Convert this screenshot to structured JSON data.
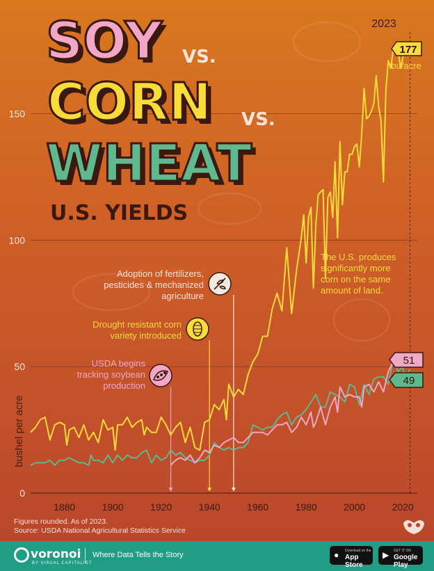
{
  "title": {
    "line1": "SOY",
    "vs1": "VS.",
    "line2": "CORN",
    "vs2": "VS.",
    "line3": "WHEAT",
    "subtitle": "U.S. YIELDS"
  },
  "year_marker": "2023",
  "unit_label": "bu/acre",
  "ylabel": "bushel per acre",
  "annotations": {
    "fertilizers": [
      "Adoption of fertilizers,",
      "pesticides & mechanized",
      "agriculture"
    ],
    "drought": [
      "Drought resistant corn",
      "variety introduced"
    ],
    "usda": [
      "USDA begins",
      "tracking soybean",
      "production"
    ],
    "corn_note": [
      "The U.S. produces",
      "significantly more",
      "corn on the same",
      "amount of land."
    ]
  },
  "end_labels": {
    "corn": "177",
    "soy": "51",
    "wheat": "49"
  },
  "notes": [
    "Figures rounded. As of 2023.",
    "Source: USDA National Agricultural Statistics Service"
  ],
  "footer": {
    "brand": "voronoi",
    "brand_sub": "BY VISUAL CAPITALIST",
    "tagline": "Where Data Tells the Story",
    "appstore_small": "Download on the",
    "appstore": "App Store",
    "googleplay_small": "GET IT ON",
    "googleplay": "Google Play"
  },
  "colors": {
    "corn": "#f9dc3a",
    "soy": "#f2a7c7",
    "wheat": "#5fb88e",
    "background": "#c4512a",
    "footer": "#219d86"
  },
  "chart_data": {
    "type": "line",
    "xlim": [
      1866,
      2026
    ],
    "ylim": [
      0,
      190
    ],
    "xticks": [
      1880,
      1900,
      1920,
      1940,
      1960,
      1980,
      2000,
      2020
    ],
    "yticks": [
      0,
      50,
      100,
      150
    ],
    "events": [
      {
        "year": 1924,
        "label": "USDA begins tracking soybean production"
      },
      {
        "year": 1940,
        "label": "Drought resistant corn variety introduced"
      },
      {
        "year": 1950,
        "label": "Adoption of fertilizers, pesticides & mechanized agriculture"
      }
    ],
    "series": [
      {
        "name": "Corn",
        "color": "#f9dc3a",
        "points": [
          [
            1866,
            24
          ],
          [
            1868,
            26
          ],
          [
            1870,
            29
          ],
          [
            1872,
            30
          ],
          [
            1874,
            21
          ],
          [
            1876,
            27
          ],
          [
            1878,
            28
          ],
          [
            1880,
            27
          ],
          [
            1881,
            19
          ],
          [
            1882,
            25
          ],
          [
            1884,
            26
          ],
          [
            1886,
            22
          ],
          [
            1888,
            27
          ],
          [
            1890,
            21
          ],
          [
            1892,
            24
          ],
          [
            1894,
            20
          ],
          [
            1896,
            29
          ],
          [
            1898,
            25
          ],
          [
            1900,
            26
          ],
          [
            1901,
            17
          ],
          [
            1902,
            27
          ],
          [
            1904,
            27
          ],
          [
            1906,
            30
          ],
          [
            1908,
            26
          ],
          [
            1910,
            28
          ],
          [
            1912,
            29
          ],
          [
            1913,
            23
          ],
          [
            1914,
            26
          ],
          [
            1916,
            24
          ],
          [
            1918,
            24
          ],
          [
            1920,
            30
          ],
          [
            1922,
            27
          ],
          [
            1924,
            23
          ],
          [
            1926,
            26
          ],
          [
            1928,
            28
          ],
          [
            1930,
            20
          ],
          [
            1932,
            26
          ],
          [
            1934,
            18
          ],
          [
            1936,
            17
          ],
          [
            1938,
            28
          ],
          [
            1940,
            29
          ],
          [
            1942,
            35
          ],
          [
            1944,
            33
          ],
          [
            1946,
            37
          ],
          [
            1947,
            29
          ],
          [
            1948,
            43
          ],
          [
            1950,
            38
          ],
          [
            1952,
            41
          ],
          [
            1954,
            39
          ],
          [
            1956,
            47
          ],
          [
            1958,
            52
          ],
          [
            1960,
            55
          ],
          [
            1962,
            62
          ],
          [
            1964,
            62
          ],
          [
            1966,
            73
          ],
          [
            1968,
            79
          ],
          [
            1970,
            72
          ],
          [
            1972,
            97
          ],
          [
            1974,
            71
          ],
          [
            1976,
            88
          ],
          [
            1978,
            101
          ],
          [
            1979,
            110
          ],
          [
            1980,
            91
          ],
          [
            1981,
            109
          ],
          [
            1982,
            113
          ],
          [
            1983,
            81
          ],
          [
            1984,
            106
          ],
          [
            1985,
            118
          ],
          [
            1986,
            119
          ],
          [
            1987,
            120
          ],
          [
            1988,
            85
          ],
          [
            1989,
            117
          ],
          [
            1990,
            119
          ],
          [
            1991,
            109
          ],
          [
            1992,
            131
          ],
          [
            1993,
            101
          ],
          [
            1994,
            139
          ],
          [
            1995,
            114
          ],
          [
            1996,
            127
          ],
          [
            1997,
            127
          ],
          [
            1998,
            134
          ],
          [
            1999,
            134
          ],
          [
            2000,
            137
          ],
          [
            2001,
            138
          ],
          [
            2002,
            129
          ],
          [
            2003,
            142
          ],
          [
            2004,
            160
          ],
          [
            2005,
            148
          ],
          [
            2006,
            149
          ],
          [
            2007,
            151
          ],
          [
            2008,
            154
          ],
          [
            2009,
            165
          ],
          [
            2010,
            153
          ],
          [
            2011,
            147
          ],
          [
            2012,
            123
          ],
          [
            2013,
            159
          ],
          [
            2014,
            171
          ],
          [
            2015,
            168
          ],
          [
            2016,
            175
          ],
          [
            2017,
            177
          ],
          [
            2018,
            176
          ],
          [
            2019,
            168
          ],
          [
            2020,
            172
          ],
          [
            2021,
            177
          ],
          [
            2022,
            173
          ],
          [
            2023,
            177
          ]
        ]
      },
      {
        "name": "Soy",
        "color": "#f2a7c7",
        "points": [
          [
            1924,
            11
          ],
          [
            1926,
            13
          ],
          [
            1928,
            14
          ],
          [
            1930,
            13
          ],
          [
            1932,
            15
          ],
          [
            1934,
            12
          ],
          [
            1936,
            14
          ],
          [
            1938,
            17
          ],
          [
            1940,
            16
          ],
          [
            1942,
            19
          ],
          [
            1944,
            18
          ],
          [
            1946,
            20
          ],
          [
            1948,
            21
          ],
          [
            1950,
            22
          ],
          [
            1952,
            20
          ],
          [
            1954,
            20
          ],
          [
            1956,
            22
          ],
          [
            1958,
            24
          ],
          [
            1960,
            24
          ],
          [
            1962,
            24
          ],
          [
            1964,
            23
          ],
          [
            1966,
            25
          ],
          [
            1968,
            27
          ],
          [
            1970,
            27
          ],
          [
            1972,
            28
          ],
          [
            1974,
            24
          ],
          [
            1976,
            26
          ],
          [
            1978,
            30
          ],
          [
            1980,
            27
          ],
          [
            1982,
            32
          ],
          [
            1983,
            26
          ],
          [
            1984,
            28
          ],
          [
            1986,
            34
          ],
          [
            1988,
            27
          ],
          [
            1990,
            34
          ],
          [
            1992,
            38
          ],
          [
            1993,
            32
          ],
          [
            1994,
            42
          ],
          [
            1996,
            38
          ],
          [
            1998,
            39
          ],
          [
            2000,
            38
          ],
          [
            2002,
            38
          ],
          [
            2003,
            34
          ],
          [
            2004,
            42
          ],
          [
            2006,
            43
          ],
          [
            2008,
            40
          ],
          [
            2010,
            44
          ],
          [
            2012,
            40
          ],
          [
            2014,
            48
          ],
          [
            2016,
            52
          ],
          [
            2018,
            51
          ],
          [
            2020,
            51
          ],
          [
            2022,
            50
          ],
          [
            2023,
            51
          ]
        ]
      },
      {
        "name": "Wheat",
        "color": "#5fb88e",
        "points": [
          [
            1866,
            11
          ],
          [
            1868,
            12
          ],
          [
            1870,
            12
          ],
          [
            1872,
            12
          ],
          [
            1874,
            13
          ],
          [
            1876,
            11
          ],
          [
            1878,
            13
          ],
          [
            1880,
            13
          ],
          [
            1882,
            14
          ],
          [
            1884,
            13
          ],
          [
            1886,
            12
          ],
          [
            1888,
            12
          ],
          [
            1890,
            11
          ],
          [
            1891,
            15
          ],
          [
            1892,
            13
          ],
          [
            1894,
            13
          ],
          [
            1896,
            12
          ],
          [
            1898,
            15
          ],
          [
            1900,
            12
          ],
          [
            1902,
            15
          ],
          [
            1904,
            13
          ],
          [
            1906,
            15
          ],
          [
            1908,
            14
          ],
          [
            1910,
            14
          ],
          [
            1912,
            16
          ],
          [
            1914,
            17
          ],
          [
            1916,
            12
          ],
          [
            1918,
            15
          ],
          [
            1920,
            13
          ],
          [
            1922,
            14
          ],
          [
            1924,
            17
          ],
          [
            1926,
            15
          ],
          [
            1928,
            16
          ],
          [
            1930,
            14
          ],
          [
            1932,
            13
          ],
          [
            1934,
            12
          ],
          [
            1936,
            13
          ],
          [
            1938,
            13
          ],
          [
            1940,
            15
          ],
          [
            1942,
            20
          ],
          [
            1944,
            18
          ],
          [
            1946,
            17
          ],
          [
            1948,
            18
          ],
          [
            1950,
            17
          ],
          [
            1952,
            18
          ],
          [
            1954,
            18
          ],
          [
            1956,
            20
          ],
          [
            1958,
            27
          ],
          [
            1960,
            26
          ],
          [
            1962,
            25
          ],
          [
            1964,
            26
          ],
          [
            1966,
            26
          ],
          [
            1968,
            29
          ],
          [
            1970,
            31
          ],
          [
            1972,
            32
          ],
          [
            1974,
            27
          ],
          [
            1976,
            30
          ],
          [
            1978,
            31
          ],
          [
            1980,
            33
          ],
          [
            1982,
            36
          ],
          [
            1984,
            39
          ],
          [
            1986,
            34
          ],
          [
            1988,
            34
          ],
          [
            1990,
            40
          ],
          [
            1992,
            39
          ],
          [
            1994,
            38
          ],
          [
            1996,
            36
          ],
          [
            1998,
            43
          ],
          [
            2000,
            42
          ],
          [
            2002,
            35
          ],
          [
            2004,
            43
          ],
          [
            2006,
            39
          ],
          [
            2008,
            45
          ],
          [
            2010,
            46
          ],
          [
            2012,
            46
          ],
          [
            2014,
            43
          ],
          [
            2016,
            53
          ],
          [
            2018,
            48
          ],
          [
            2020,
            50
          ],
          [
            2021,
            44
          ],
          [
            2022,
            47
          ],
          [
            2023,
            49
          ]
        ]
      }
    ]
  }
}
